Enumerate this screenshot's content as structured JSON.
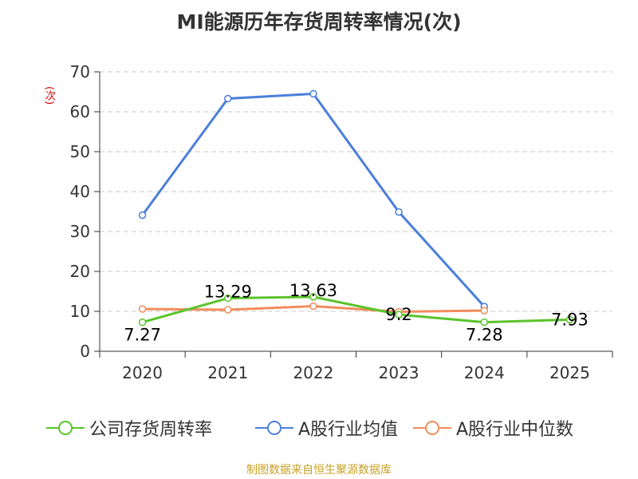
{
  "chart_data": {
    "type": "line",
    "title": "MI能源历年存货周转率情况(次)",
    "ylabel": "(次)",
    "categories": [
      "2020",
      "2021",
      "2022",
      "2023",
      "2024",
      "2025"
    ],
    "ylim": [
      0,
      70
    ],
    "yticks": [
      0,
      10,
      20,
      30,
      40,
      50,
      60,
      70
    ],
    "grid": true,
    "legend_position": "bottom",
    "series": [
      {
        "name": "公司存货周转率",
        "color": "#5ac42b",
        "values": [
          7.27,
          13.29,
          13.63,
          9.2,
          7.28,
          7.93
        ],
        "labels": [
          "7.27",
          "13.29",
          "13.63",
          "9.2",
          "7.28",
          "7.93"
        ]
      },
      {
        "name": "A股行业均值",
        "color": "#4a7fd9",
        "values": [
          34.1,
          63.3,
          64.5,
          34.9,
          11.2,
          null
        ]
      },
      {
        "name": "A股行业中位数",
        "color": "#f28c5b",
        "values": [
          10.6,
          10.4,
          11.3,
          9.9,
          10.2,
          null
        ]
      }
    ],
    "source": "制图数据来自恒生聚源数据库"
  }
}
